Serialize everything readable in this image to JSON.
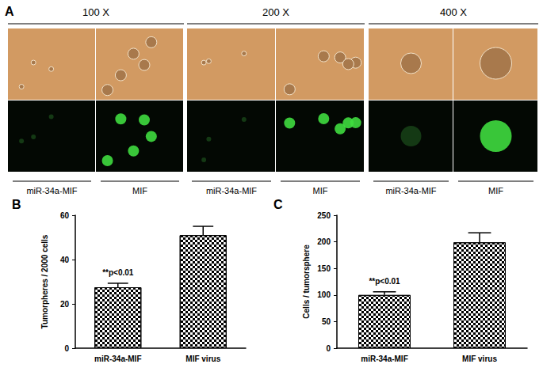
{
  "panel_a": {
    "label": "A",
    "magnifications": [
      "100 X",
      "200 X",
      "400 X"
    ],
    "conditions": [
      "miR-34a-MIF",
      "MIF"
    ]
  },
  "chart_data": [
    {
      "type": "bar",
      "label": "B",
      "ylabel": "Tumorpheres / 2000 cells",
      "categories": [
        "miR-34a-MIF",
        "MIF virus"
      ],
      "values": [
        27.5,
        51
      ],
      "errors": [
        1.8,
        4
      ],
      "annotation": "**p<0.01",
      "color": "#000000",
      "ylim": [
        0,
        60
      ],
      "yticks": [
        0,
        20,
        40,
        60
      ]
    },
    {
      "type": "bar",
      "label": "C",
      "ylabel": "Cells / tumorsphere",
      "categories": [
        "miR-34a-MIF",
        "MIF virus"
      ],
      "values": [
        100,
        199
      ],
      "errors": [
        6,
        18
      ],
      "annotation": "**p<0.01",
      "color": "#000000",
      "ylim": [
        0,
        250
      ],
      "yticks": [
        0,
        50,
        100,
        150,
        200,
        250
      ]
    }
  ]
}
